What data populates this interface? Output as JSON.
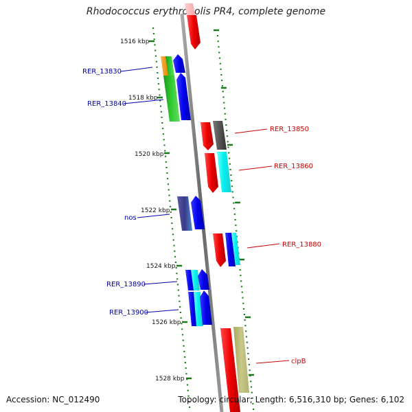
{
  "title": "Rhodococcus erythropolis PR4, complete genome",
  "accession": "Accession: NC_012490",
  "topology_text": "Topology: circular; Length: 6,516,310 bp; Genes: 6,102",
  "kbp_labels": [
    "1516 kbp",
    "1518 kbp",
    "1520 kbp",
    "1522 kbp",
    "1524 kbp",
    "1526 kbp",
    "1528 kbp"
  ],
  "gene_labels": {
    "RER_13830": "RER_13830",
    "RER_13840": "RER_13840",
    "RER_13850": "RER_13850",
    "RER_13860": "RER_13860",
    "nos": "nos",
    "RER_13880": "RER_13880",
    "RER_13890": "RER_13890",
    "RER_13900": "RER_13900",
    "clpB": "clpB"
  },
  "colors": {
    "forward_label": "#0000aa",
    "reverse_label": "#cc0000",
    "tick": "#1a7a1a",
    "backbone": "#888888"
  }
}
